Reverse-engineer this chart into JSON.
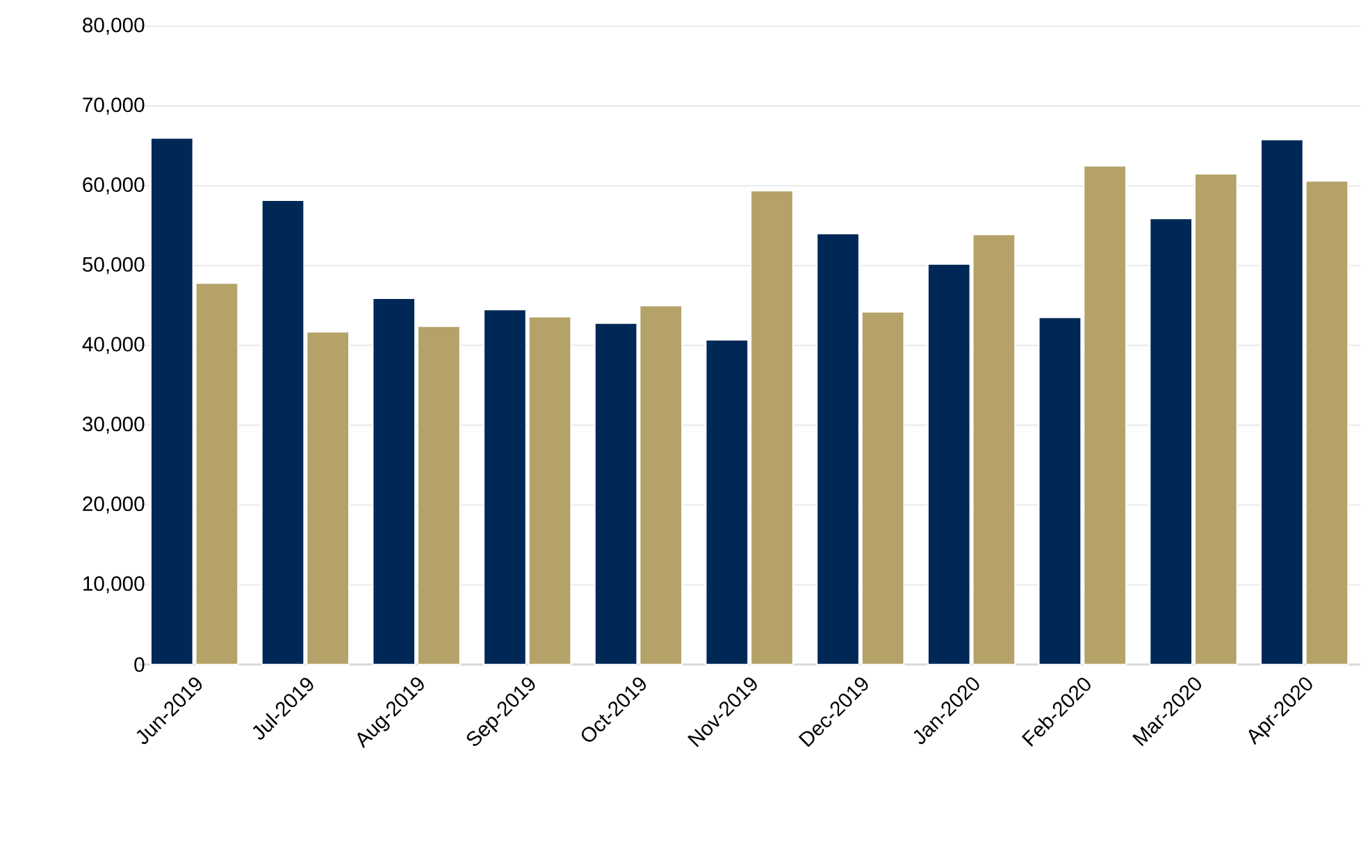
{
  "chart_data": {
    "type": "bar",
    "categories": [
      "Jun-2019",
      "Jul-2019",
      "Aug-2019",
      "Sep-2019",
      "Oct-2019",
      "Nov-2019",
      "Dec-2019",
      "Jan-2020",
      "Feb-2020",
      "Mar-2020",
      "Apr-2020"
    ],
    "series": [
      {
        "color": "#002856",
        "values": [
          66000,
          58200,
          45900,
          44500,
          42800,
          40700,
          54000,
          50200,
          43500,
          55900,
          65800
        ]
      },
      {
        "color": "#b4a269",
        "values": [
          47800,
          41700,
          42400,
          43600,
          45000,
          59400,
          44200,
          53900,
          62500,
          61500,
          60600
        ]
      }
    ],
    "ylim": [
      0,
      80000
    ],
    "yticks": [
      {
        "value": 0,
        "label": "0"
      },
      {
        "value": 10000,
        "label": "10,000"
      },
      {
        "value": 20000,
        "label": "20,000"
      },
      {
        "value": 30000,
        "label": "30,000"
      },
      {
        "value": 40000,
        "label": "40,000"
      },
      {
        "value": 50000,
        "label": "50,000"
      },
      {
        "value": 60000,
        "label": "60,000"
      },
      {
        "value": 70000,
        "label": "70,000"
      },
      {
        "value": 80000,
        "label": "80,000"
      }
    ],
    "grid": "y"
  }
}
